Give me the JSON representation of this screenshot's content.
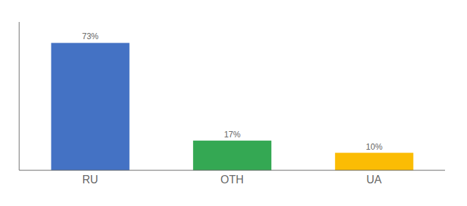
{
  "chart_data": {
    "type": "bar",
    "categories": [
      "RU",
      "OTH",
      "UA"
    ],
    "values": [
      73,
      17,
      10
    ],
    "value_labels": [
      "73%",
      "17%",
      "10%"
    ],
    "colors": [
      "#4472c4",
      "#34a853",
      "#fbbc04"
    ],
    "ylim": [
      0,
      85
    ],
    "data_labels": true,
    "tick_labels": "x",
    "grid": false
  }
}
